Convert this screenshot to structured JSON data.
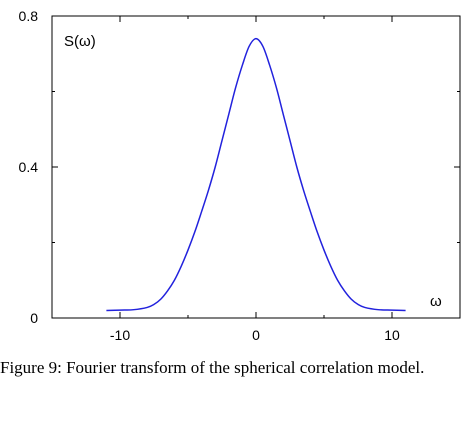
{
  "chart_data": {
    "type": "line",
    "title": "",
    "xlabel": "ω",
    "ylabel": "S(ω)",
    "xlim": [
      -15,
      15
    ],
    "ylim": [
      0,
      0.8
    ],
    "xticks": [
      "-10",
      "0",
      "10"
    ],
    "xtick_values": [
      -10,
      0,
      10
    ],
    "yticks": [
      "0",
      "0.4",
      "0.8"
    ],
    "ytick_values": [
      0,
      0.4,
      0.8
    ],
    "grid": false,
    "line_color": "#2222dd",
    "series": [
      {
        "x": [
          -11,
          -10,
          -9,
          -8,
          -7.5,
          -7,
          -6.5,
          -6,
          -5.5,
          -5,
          -4.5,
          -4,
          -3.5,
          -3,
          -2.5,
          -2,
          -1.5,
          -1,
          -0.5,
          0,
          0.5,
          1,
          1.5,
          2,
          2.5,
          3,
          3.5,
          4,
          4.5,
          5,
          5.5,
          6,
          6.5,
          7,
          7.5,
          8,
          9,
          10,
          11
        ],
        "y": [
          0.02,
          0.021,
          0.022,
          0.028,
          0.036,
          0.05,
          0.072,
          0.1,
          0.137,
          0.18,
          0.228,
          0.282,
          0.338,
          0.4,
          0.47,
          0.54,
          0.61,
          0.67,
          0.72,
          0.74,
          0.72,
          0.67,
          0.61,
          0.54,
          0.47,
          0.4,
          0.338,
          0.282,
          0.228,
          0.18,
          0.137,
          0.1,
          0.072,
          0.05,
          0.036,
          0.028,
          0.022,
          0.021,
          0.02
        ]
      }
    ]
  },
  "caption": "Figure 9: Fourier transform of the spherical correlation model."
}
